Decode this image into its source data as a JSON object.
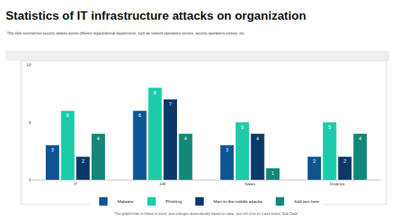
{
  "chart_data": {
    "type": "bar",
    "title": "Statistics of IT infrastructure attacks on organization",
    "subtitle": "This slide summarizes security attacks across different organizational departments, such as network operations centres, security operations centres, etc.",
    "annotations": [
      "This graph/chart is linked to excel, and changes automatically based on data. Just left click on it and select \"Edit Data\"."
    ],
    "categories": [
      "IT",
      "HR",
      "Sales",
      "Finance"
    ],
    "series": [
      {
        "name": "Malware",
        "color": "#0d5593",
        "values": [
          3,
          6,
          3,
          2
        ]
      },
      {
        "name": "Phishing",
        "color": "#1ccba8",
        "values": [
          6,
          8,
          5,
          5
        ]
      },
      {
        "name": "Man-in-the-middle attacks",
        "color": "#0b3a68",
        "values": [
          2,
          7,
          4,
          2
        ]
      },
      {
        "name": "Add text here",
        "color": "#12877a",
        "values": [
          4,
          4,
          1,
          4
        ]
      }
    ],
    "ylim": [
      0,
      10
    ],
    "yticks": [
      0,
      5,
      10
    ],
    "grid": false,
    "legend": "bottom",
    "data_labels": true
  }
}
